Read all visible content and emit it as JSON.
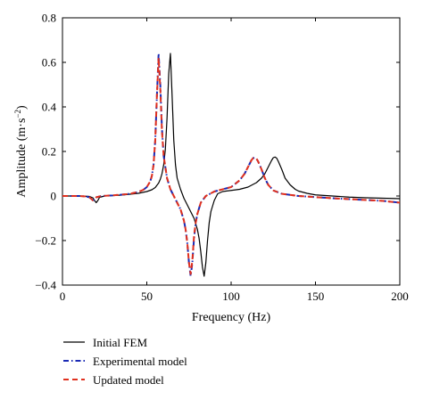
{
  "chart_data": {
    "type": "line",
    "xlabel": "Frequency (Hz)",
    "ylabel_main": "Amplitude (m·s",
    "ylabel_sup": "−2",
    "ylabel_close": ")",
    "xlim": [
      0,
      200
    ],
    "ylim": [
      -0.4,
      0.8
    ],
    "xticks": [
      0,
      50,
      100,
      150,
      200
    ],
    "yticks": [
      -0.4,
      -0.2,
      0,
      0.2,
      0.4,
      0.6,
      0.8
    ],
    "xtick_labels": [
      "0",
      "50",
      "100",
      "150",
      "200"
    ],
    "ytick_labels": [
      "−0.4",
      "−0.2",
      "0",
      "0.2",
      "0.4",
      "0.6",
      "0.8"
    ],
    "grid": false,
    "legend_position": "below",
    "series": [
      {
        "name": "Initial FEM",
        "color": "#000000",
        "style": "solid",
        "x": [
          0,
          10,
          16,
          18,
          19,
          20,
          21,
          22,
          25,
          30,
          35,
          40,
          45,
          50,
          53,
          55,
          57,
          58,
          59,
          60,
          61,
          62,
          63,
          64,
          65,
          66,
          67,
          68,
          70,
          72,
          74,
          76,
          78,
          80,
          81,
          82,
          83,
          84,
          85,
          86,
          87,
          88,
          90,
          92,
          95,
          100,
          105,
          110,
          115,
          118,
          120,
          122,
          124,
          125,
          126,
          127,
          128,
          130,
          132,
          135,
          138,
          140,
          145,
          150,
          160,
          170,
          180,
          190,
          200
        ],
        "y": [
          0,
          0,
          -0.002,
          -0.008,
          -0.02,
          -0.03,
          -0.02,
          -0.006,
          0,
          0.002,
          0.004,
          0.008,
          0.012,
          0.02,
          0.028,
          0.038,
          0.058,
          0.075,
          0.1,
          0.14,
          0.21,
          0.35,
          0.55,
          0.64,
          0.45,
          0.25,
          0.14,
          0.08,
          0.03,
          -0.01,
          -0.04,
          -0.07,
          -0.1,
          -0.15,
          -0.19,
          -0.25,
          -0.32,
          -0.36,
          -0.3,
          -0.2,
          -0.12,
          -0.07,
          -0.02,
          0.01,
          0.02,
          0.025,
          0.03,
          0.04,
          0.06,
          0.08,
          0.1,
          0.13,
          0.16,
          0.172,
          0.175,
          0.17,
          0.155,
          0.12,
          0.08,
          0.05,
          0.03,
          0.022,
          0.012,
          0.005,
          0,
          -0.005,
          -0.008,
          -0.01,
          -0.012
        ]
      },
      {
        "name": "Experimental model",
        "color": "#1a2ab5",
        "style": "dashdot",
        "x": [
          0,
          10,
          14,
          16,
          17,
          18,
          19,
          20,
          23,
          30,
          35,
          40,
          45,
          48,
          50,
          52,
          53,
          54,
          55,
          56,
          57,
          58,
          59,
          60,
          62,
          64,
          66,
          68,
          70,
          72,
          73,
          74,
          75,
          76,
          77,
          78,
          79,
          80,
          82,
          85,
          90,
          95,
          100,
          105,
          108,
          110,
          112,
          113,
          114,
          115,
          116,
          118,
          120,
          122,
          125,
          130,
          140,
          150,
          160,
          170,
          180,
          190,
          200
        ],
        "y": [
          0,
          0,
          -0.002,
          -0.006,
          -0.012,
          -0.02,
          -0.016,
          -0.006,
          0,
          0.003,
          0.006,
          0.01,
          0.018,
          0.028,
          0.04,
          0.065,
          0.09,
          0.14,
          0.25,
          0.45,
          0.64,
          0.5,
          0.3,
          0.18,
          0.08,
          0.03,
          0,
          -0.03,
          -0.06,
          -0.11,
          -0.15,
          -0.21,
          -0.3,
          -0.36,
          -0.3,
          -0.19,
          -0.12,
          -0.08,
          -0.03,
          0,
          0.02,
          0.03,
          0.04,
          0.07,
          0.1,
          0.13,
          0.16,
          0.17,
          0.172,
          0.168,
          0.155,
          0.12,
          0.08,
          0.05,
          0.025,
          0.01,
          0,
          -0.005,
          -0.01,
          -0.014,
          -0.018,
          -0.022,
          -0.03
        ]
      },
      {
        "name": "Updated model",
        "color": "#e0301e",
        "style": "dashed",
        "x": [
          0,
          10,
          14,
          16,
          17,
          18,
          19,
          20,
          23,
          30,
          35,
          40,
          45,
          48,
          50,
          52,
          53,
          54,
          55,
          56,
          57,
          58,
          59,
          60,
          62,
          64,
          66,
          68,
          70,
          72,
          73,
          74,
          75,
          76,
          77,
          78,
          79,
          80,
          82,
          85,
          90,
          95,
          100,
          105,
          108,
          110,
          112,
          113,
          114,
          115,
          116,
          118,
          120,
          122,
          125,
          130,
          140,
          150,
          160,
          170,
          180,
          190,
          200
        ],
        "y": [
          0,
          0,
          -0.002,
          -0.006,
          -0.012,
          -0.02,
          -0.016,
          -0.006,
          0,
          0.003,
          0.006,
          0.01,
          0.018,
          0.028,
          0.04,
          0.065,
          0.09,
          0.14,
          0.25,
          0.45,
          0.62,
          0.48,
          0.29,
          0.18,
          0.08,
          0.03,
          0,
          -0.03,
          -0.06,
          -0.11,
          -0.15,
          -0.21,
          -0.3,
          -0.35,
          -0.29,
          -0.18,
          -0.12,
          -0.08,
          -0.03,
          0,
          0.02,
          0.03,
          0.04,
          0.07,
          0.1,
          0.13,
          0.16,
          0.17,
          0.172,
          0.168,
          0.155,
          0.12,
          0.08,
          0.05,
          0.025,
          0.01,
          0,
          -0.005,
          -0.01,
          -0.014,
          -0.018,
          -0.022,
          -0.03
        ]
      }
    ]
  },
  "legend": {
    "items": [
      {
        "label": "Initial FEM"
      },
      {
        "label": "Experimental model"
      },
      {
        "label": "Updated model"
      }
    ]
  }
}
